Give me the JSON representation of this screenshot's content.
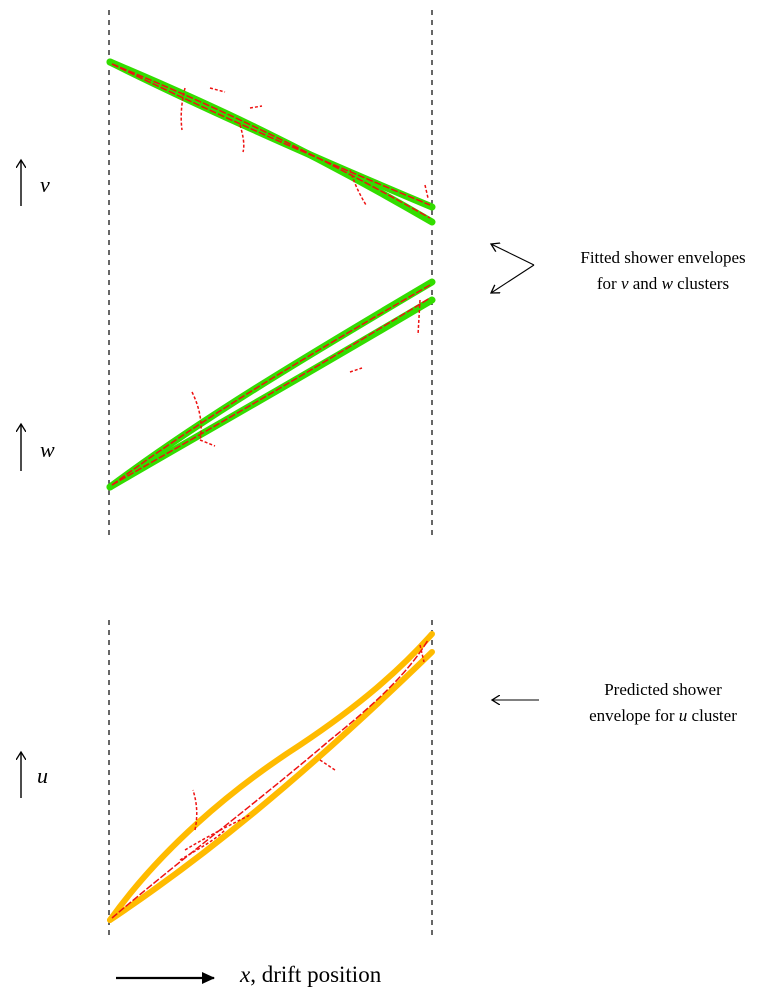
{
  "views": [
    {
      "key": "v",
      "axis_label": "v",
      "envelope_color": "#33dd00",
      "hit_color": "#ee1111"
    },
    {
      "key": "w",
      "axis_label": "w",
      "envelope_color": "#33dd00",
      "hit_color": "#ee1111"
    },
    {
      "key": "u",
      "axis_label": "u",
      "envelope_color": "#ffbb00",
      "hit_color": "#ee1111"
    }
  ],
  "annotations": {
    "fitted": {
      "line1": "Fitted shower envelopes",
      "line2_pre": "for ",
      "var_a": "v",
      "line2_mid": " and ",
      "var_b": "w",
      "line2_post": " clusters"
    },
    "predicted": {
      "line1": "Predicted shower",
      "line2_pre": "envelope for ",
      "var": "u",
      "line2_post": " cluster"
    }
  },
  "x_axis": {
    "var": "x",
    "label_rest": ", drift position"
  },
  "icons": {
    "axis_arrow": "up-arrow-icon",
    "pointer": "left-arrow-icon",
    "fork": "fork-arrow-icon"
  }
}
